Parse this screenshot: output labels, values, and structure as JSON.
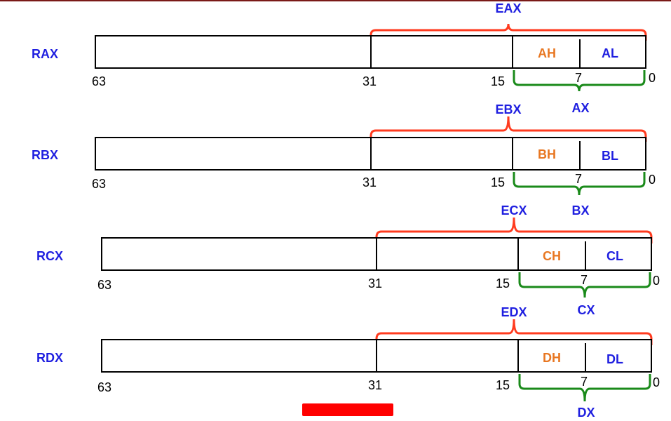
{
  "registers": [
    {
      "name": "RAX",
      "e_name": "EAX",
      "x_name": "AX",
      "high": "AH",
      "low": "AL"
    },
    {
      "name": "RBX",
      "e_name": "EBX",
      "x_name": "BX",
      "high": "BH",
      "low": "BL"
    },
    {
      "name": "RCX",
      "e_name": "ECX",
      "x_name": "CX",
      "high": "CH",
      "low": "CL"
    },
    {
      "name": "RDX",
      "e_name": "EDX",
      "x_name": "DX",
      "high": "DH",
      "low": "DL"
    }
  ],
  "bit_labels": {
    "b63": "63",
    "b31": "31",
    "b15": "15",
    "b7": "7",
    "b0": "0"
  },
  "colors": {
    "register_name": "#1f1fe0",
    "high_byte": "#e87722",
    "e_brace": "#ff3b1f",
    "x_brace": "#1a8a1a",
    "footer_bar": "#ff0000",
    "top_rule": "#7a1a17"
  }
}
